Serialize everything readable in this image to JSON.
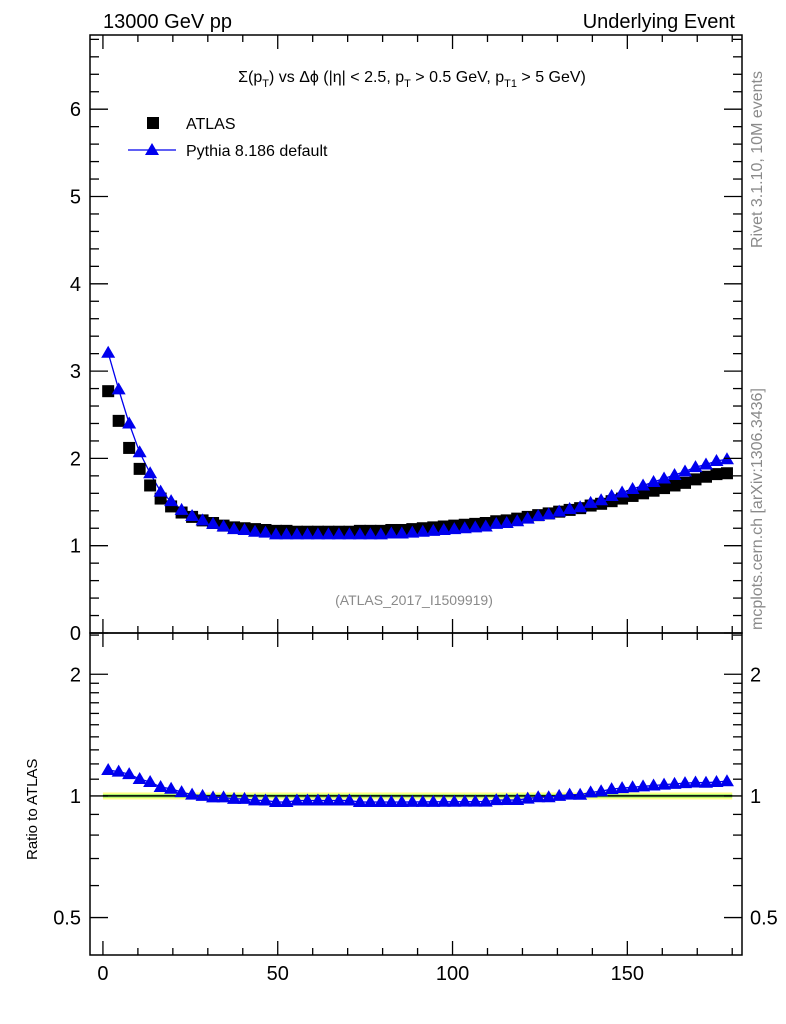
{
  "header": {
    "left": "13000 GeV pp",
    "right": "Underlying Event"
  },
  "side_text": {
    "rivet": "Rivet 3.1.10,  10M events",
    "mcplots": "mcplots.cern.ch [arXiv:1306.3436]"
  },
  "watermark": "(ATLAS_2017_I1509919)",
  "colors": {
    "data": "#000000",
    "mc": "#0000ee",
    "band_yellow": "#ffff88",
    "band_green": "#99ee66"
  },
  "chart_data": [
    {
      "type": "scatter",
      "title_parts": [
        {
          "t": "Σ(p",
          "sub": false
        },
        {
          "t": "T",
          "sub": true
        },
        {
          "t": ") vs Δϕ (|η| < 2.5, p",
          "sub": false
        },
        {
          "t": "T",
          "sub": true
        },
        {
          "t": " > 0.5 GeV, p",
          "sub": false
        },
        {
          "t": "T1",
          "sub": true
        },
        {
          "t": " > 5 GeV)",
          "sub": false
        }
      ],
      "xlim": [
        -3.7,
        182.8
      ],
      "ylim": [
        0,
        6.85
      ],
      "xticks": [
        "0",
        "50",
        "100",
        "150"
      ],
      "yticks": [
        "0",
        "1",
        "2",
        "3",
        "4",
        "5",
        "6"
      ],
      "legend": [
        "ATLAS",
        "Pythia 8.186 default"
      ],
      "legend_position": "top-left",
      "x": [
        1.5,
        4.5,
        7.5,
        10.5,
        13.5,
        16.5,
        19.5,
        22.5,
        25.5,
        28.5,
        31.5,
        34.5,
        37.5,
        40.5,
        43.5,
        46.5,
        49.5,
        52.5,
        55.5,
        58.5,
        61.5,
        64.5,
        67.5,
        70.5,
        73.5,
        76.5,
        79.5,
        82.5,
        85.5,
        88.5,
        91.5,
        94.5,
        97.5,
        100.5,
        103.5,
        106.5,
        109.5,
        112.5,
        115.5,
        118.5,
        121.5,
        124.5,
        127.5,
        130.5,
        133.5,
        136.5,
        139.5,
        142.5,
        145.5,
        148.5,
        151.5,
        154.5,
        157.5,
        160.5,
        163.5,
        166.5,
        169.5,
        172.5,
        175.5,
        178.5
      ],
      "series": [
        {
          "name": "ATLAS",
          "values": [
            2.77,
            2.43,
            2.12,
            1.88,
            1.69,
            1.54,
            1.45,
            1.38,
            1.33,
            1.29,
            1.26,
            1.23,
            1.21,
            1.2,
            1.19,
            1.18,
            1.17,
            1.17,
            1.16,
            1.16,
            1.16,
            1.16,
            1.16,
            1.16,
            1.17,
            1.17,
            1.17,
            1.18,
            1.18,
            1.19,
            1.2,
            1.21,
            1.22,
            1.23,
            1.24,
            1.25,
            1.26,
            1.28,
            1.29,
            1.31,
            1.33,
            1.35,
            1.37,
            1.39,
            1.41,
            1.43,
            1.46,
            1.48,
            1.51,
            1.54,
            1.57,
            1.6,
            1.63,
            1.66,
            1.69,
            1.72,
            1.76,
            1.79,
            1.82,
            1.83
          ]
        },
        {
          "name": "Pythia 8.186 default",
          "values": [
            3.21,
            2.79,
            2.4,
            2.07,
            1.83,
            1.62,
            1.51,
            1.41,
            1.34,
            1.29,
            1.25,
            1.22,
            1.19,
            1.18,
            1.16,
            1.15,
            1.13,
            1.13,
            1.13,
            1.13,
            1.13,
            1.13,
            1.13,
            1.13,
            1.13,
            1.13,
            1.13,
            1.14,
            1.14,
            1.15,
            1.16,
            1.17,
            1.18,
            1.19,
            1.2,
            1.21,
            1.22,
            1.25,
            1.26,
            1.28,
            1.31,
            1.34,
            1.36,
            1.39,
            1.42,
            1.44,
            1.49,
            1.52,
            1.57,
            1.61,
            1.65,
            1.69,
            1.73,
            1.77,
            1.81,
            1.85,
            1.9,
            1.93,
            1.97,
            1.99
          ]
        }
      ]
    },
    {
      "type": "scatter",
      "ylabel": "Ratio to ATLAS",
      "yscale": "log",
      "ylim": [
        0.404,
        2.53
      ],
      "yticks": [
        "0.5",
        "1",
        "2"
      ],
      "band_yellow": [
        0.98,
        1.02
      ],
      "band_green": [
        0.99,
        1.01
      ]
    }
  ]
}
